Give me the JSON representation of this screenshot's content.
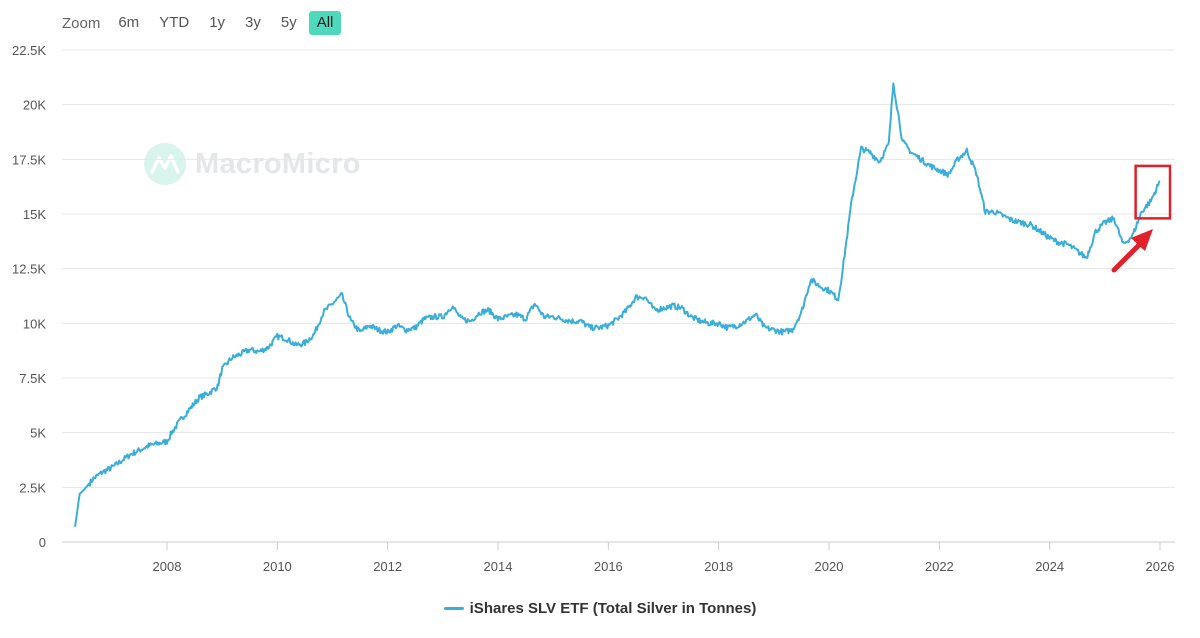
{
  "toolbar": {
    "zoom_label": "Zoom",
    "buttons": [
      "6m",
      "YTD",
      "1y",
      "3y",
      "5y",
      "All"
    ],
    "active": "All"
  },
  "watermark": {
    "text": "MacroMicro"
  },
  "colors": {
    "series": "#3aaed8",
    "grid": "#e6e6e6",
    "active_button": "#4fd9bc",
    "annotation": "#e0202a"
  },
  "chart_data": {
    "type": "line",
    "title": "",
    "xlabel": "",
    "ylabel": "",
    "ylim": [
      0,
      22500
    ],
    "xlim": [
      "2006-04",
      "2026-01"
    ],
    "y_ticks": [
      "0",
      "2.5K",
      "5K",
      "7.5K",
      "10K",
      "12.5K",
      "15K",
      "17.5K",
      "20K",
      "22.5K"
    ],
    "y_tick_values": [
      0,
      2500,
      5000,
      7500,
      10000,
      12500,
      15000,
      17500,
      20000,
      22500
    ],
    "x_ticks": [
      "2008",
      "2010",
      "2012",
      "2014",
      "2016",
      "2018",
      "2020",
      "2022",
      "2024",
      "2026"
    ],
    "grid": "horizontal",
    "legend": "bottom-center",
    "series": [
      {
        "name": "iShares SLV ETF (Total Silver in Tonnes)",
        "x": [
          "2006-05",
          "2006-06",
          "2006-07",
          "2006-09",
          "2006-11",
          "2007-01",
          "2007-03",
          "2007-05",
          "2007-07",
          "2007-09",
          "2007-11",
          "2008-01",
          "2008-02",
          "2008-04",
          "2008-06",
          "2008-08",
          "2008-10",
          "2008-12",
          "2009-01",
          "2009-03",
          "2009-05",
          "2009-07",
          "2009-09",
          "2009-11",
          "2010-01",
          "2010-03",
          "2010-05",
          "2010-07",
          "2010-09",
          "2010-11",
          "2011-01",
          "2011-03",
          "2011-05",
          "2011-07",
          "2011-09",
          "2011-11",
          "2012-01",
          "2012-03",
          "2012-05",
          "2012-07",
          "2012-09",
          "2012-11",
          "2013-01",
          "2013-03",
          "2013-05",
          "2013-07",
          "2013-09",
          "2013-11",
          "2014-01",
          "2014-03",
          "2014-05",
          "2014-07",
          "2014-09",
          "2014-11",
          "2015-01",
          "2015-03",
          "2015-05",
          "2015-07",
          "2015-09",
          "2015-11",
          "2016-01",
          "2016-03",
          "2016-05",
          "2016-07",
          "2016-09",
          "2016-11",
          "2017-01",
          "2017-03",
          "2017-05",
          "2017-07",
          "2017-09",
          "2017-11",
          "2018-01",
          "2018-03",
          "2018-05",
          "2018-07",
          "2018-09",
          "2018-11",
          "2019-01",
          "2019-03",
          "2019-05",
          "2019-07",
          "2019-09",
          "2019-11",
          "2020-01",
          "2020-03",
          "2020-04",
          "2020-06",
          "2020-08",
          "2020-10",
          "2020-12",
          "2021-02",
          "2021-03",
          "2021-05",
          "2021-07",
          "2021-09",
          "2021-11",
          "2022-01",
          "2022-03",
          "2022-05",
          "2022-07",
          "2022-09",
          "2022-11",
          "2023-01",
          "2023-03",
          "2023-05",
          "2023-07",
          "2023-09",
          "2023-11",
          "2024-01",
          "2024-03",
          "2024-05",
          "2024-07",
          "2024-09",
          "2024-11",
          "2025-01",
          "2025-03",
          "2025-05",
          "2025-07",
          "2025-09",
          "2025-11",
          "2026-01"
        ],
        "values": [
          700,
          2200,
          2400,
          2900,
          3200,
          3400,
          3700,
          4000,
          4200,
          4400,
          4500,
          4600,
          5000,
          5600,
          6100,
          6600,
          6800,
          7100,
          7900,
          8400,
          8600,
          8800,
          8700,
          8900,
          9400,
          9300,
          9000,
          9100,
          9500,
          10500,
          10900,
          11300,
          10100,
          9600,
          9900,
          9700,
          9600,
          9900,
          9700,
          9800,
          10200,
          10300,
          10300,
          10800,
          10200,
          10100,
          10500,
          10600,
          10200,
          10300,
          10400,
          10200,
          10900,
          10300,
          10300,
          10200,
          10100,
          10100,
          9800,
          9800,
          9900,
          10200,
          10600,
          11200,
          11200,
          10600,
          10700,
          10800,
          10700,
          10300,
          10100,
          10000,
          10000,
          9800,
          9900,
          10100,
          10400,
          9800,
          9700,
          9600,
          9700,
          10500,
          12000,
          11700,
          11500,
          11100,
          12500,
          15700,
          18000,
          17800,
          17400,
          18200,
          21000,
          18300,
          17800,
          17500,
          17200,
          17000,
          16800,
          17500,
          17900,
          16900,
          15100,
          15100,
          14900,
          14700,
          14600,
          14500,
          14200,
          13900,
          13700,
          13600,
          13300,
          13000,
          14200,
          14600,
          14800,
          13600,
          14000,
          15100,
          15600,
          16500
        ]
      }
    ],
    "annotations": [
      {
        "type": "highlight-box",
        "x_range": [
          "2025-09",
          "2026-01"
        ],
        "y_range": [
          14800,
          17200
        ],
        "color": "#e0202a"
      },
      {
        "type": "arrow",
        "color": "#e0202a"
      }
    ]
  }
}
